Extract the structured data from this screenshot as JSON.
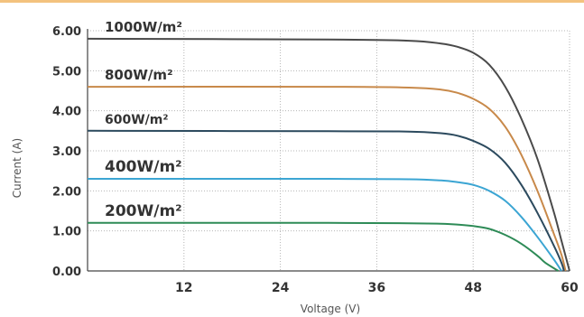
{
  "chart_data": {
    "type": "line",
    "title": "",
    "xlabel": "Voltage (V)",
    "ylabel": "Current (A)",
    "xlim": [
      0,
      60
    ],
    "ylim": [
      0,
      6
    ],
    "x_ticks": [
      "12",
      "24",
      "36",
      "48",
      "60"
    ],
    "y_ticks": [
      "0.00",
      "1.00",
      "2.00",
      "3.00",
      "4.00",
      "5.00",
      "6.00"
    ],
    "grid": true,
    "series": [
      {
        "name": "1000W/m²",
        "color": "#4a4a4a",
        "isc": 5.8,
        "voc": 60.0,
        "x": [
          0,
          30,
          40,
          44,
          46,
          48,
          50,
          52,
          54,
          56,
          58,
          59,
          60
        ],
        "y": [
          5.8,
          5.78,
          5.75,
          5.68,
          5.6,
          5.45,
          5.15,
          4.6,
          3.8,
          2.8,
          1.5,
          0.75,
          0
        ]
      },
      {
        "name": "800W/m²",
        "color": "#c8894a",
        "isc": 4.6,
        "voc": 59.5,
        "x": [
          0,
          30,
          40,
          44,
          46,
          48,
          50,
          52,
          54,
          56,
          58,
          59,
          59.5
        ],
        "y": [
          4.6,
          4.6,
          4.58,
          4.53,
          4.45,
          4.3,
          4.05,
          3.6,
          2.9,
          2.0,
          0.95,
          0.4,
          0
        ]
      },
      {
        "name": "600W/m²",
        "color": "#2c4a5e",
        "isc": 3.5,
        "voc": 59.3,
        "x": [
          0,
          30,
          40,
          44,
          46,
          48,
          50,
          52,
          54,
          56,
          58,
          59,
          59.3
        ],
        "y": [
          3.5,
          3.49,
          3.48,
          3.44,
          3.38,
          3.25,
          3.05,
          2.7,
          2.15,
          1.45,
          0.65,
          0.2,
          0
        ]
      },
      {
        "name": "400W/m²",
        "color": "#3ba5d3",
        "isc": 2.3,
        "voc": 59.0,
        "x": [
          0,
          30,
          40,
          44,
          46,
          48,
          50,
          52,
          54,
          56,
          58,
          59
        ],
        "y": [
          2.3,
          2.3,
          2.29,
          2.26,
          2.22,
          2.15,
          2.0,
          1.75,
          1.35,
          0.85,
          0.3,
          0
        ]
      },
      {
        "name": "200W/m²",
        "color": "#2e8b57",
        "isc": 1.2,
        "voc": 58.6,
        "x": [
          0,
          30,
          40,
          44,
          46,
          48,
          50,
          52,
          54,
          56,
          57,
          58.6
        ],
        "y": [
          1.2,
          1.2,
          1.19,
          1.18,
          1.16,
          1.12,
          1.05,
          0.9,
          0.68,
          0.38,
          0.2,
          0
        ]
      }
    ]
  }
}
